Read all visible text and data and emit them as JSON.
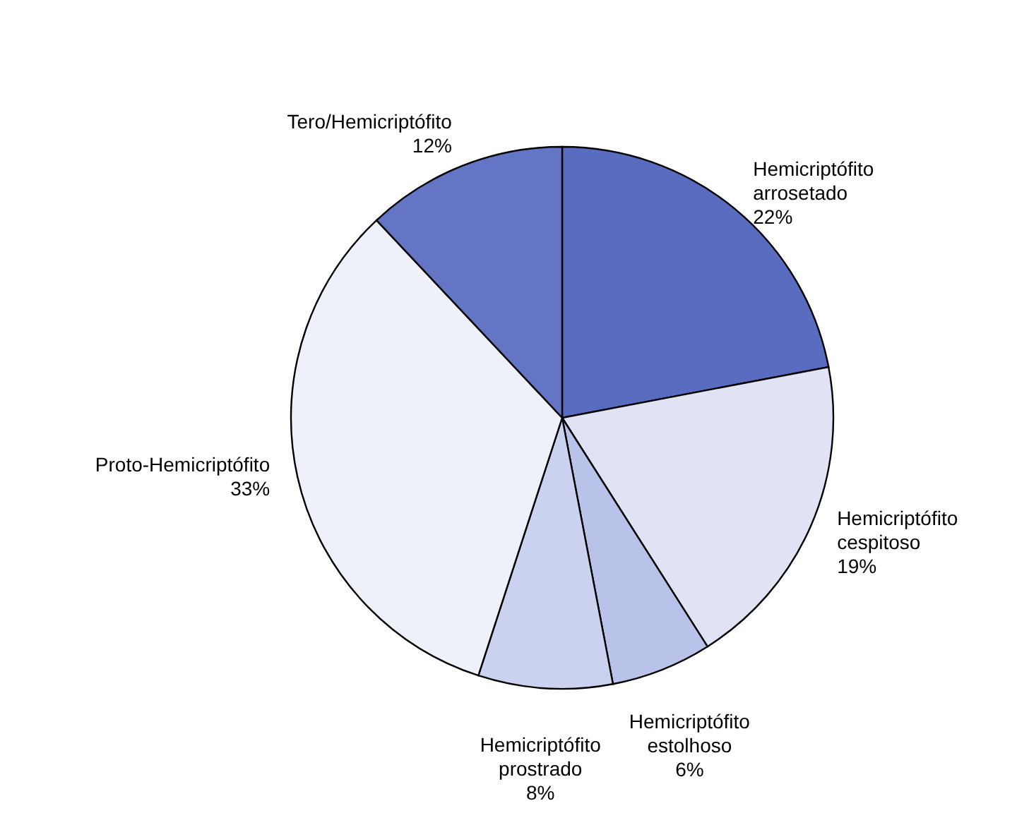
{
  "chart_data": {
    "type": "pie",
    "categories": [
      "Hemicriptófito arrosetado",
      "Hemicriptófito cespitoso",
      "Hemicriptófito estolhoso",
      "Hemicriptófito prostrado",
      "Proto-Hemicriptófito",
      "Tero/Hemicriptófito"
    ],
    "values": [
      22,
      19,
      6,
      8,
      33,
      12
    ],
    "colors": [
      "#5a6cc0",
      "#dfe3f4",
      "#b9c3ea",
      "#cbd2f0",
      "#eef0fa",
      "#6475c6"
    ],
    "value_labels": [
      "22%",
      "19%",
      "6%",
      "8%",
      "33%",
      "12%"
    ]
  }
}
